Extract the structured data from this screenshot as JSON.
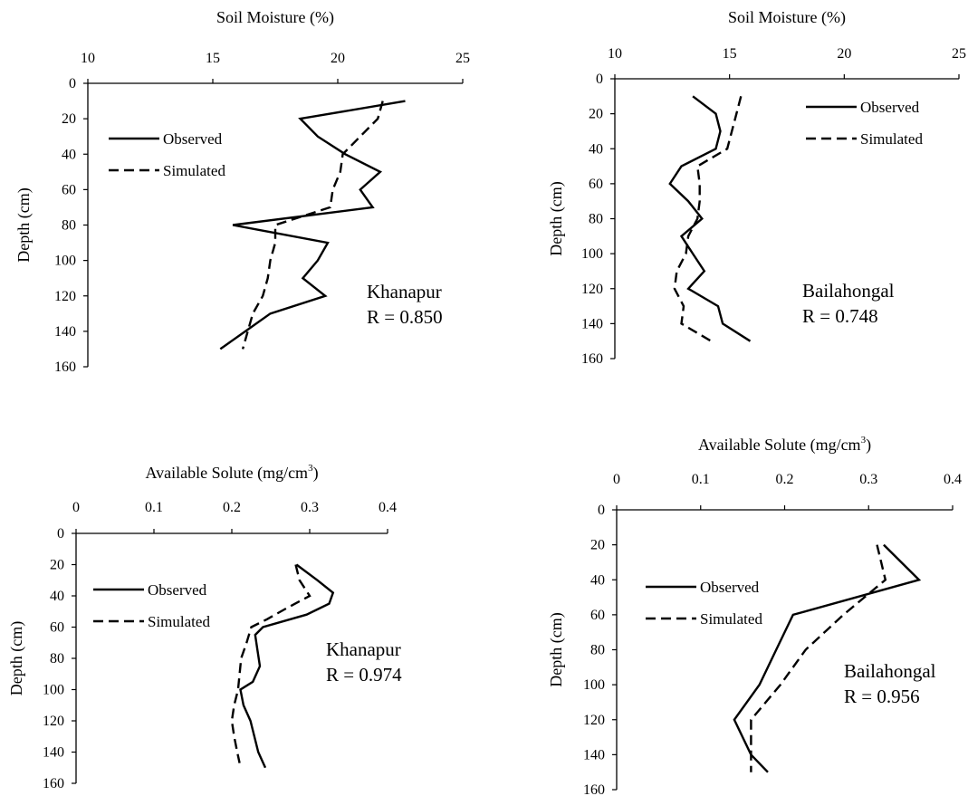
{
  "chart_data": [
    {
      "type": "line",
      "orientation": "depth-profile",
      "title": "",
      "xlabel": "Soil Moisture (%)",
      "xlabel_sup": "",
      "ylabel": "Depth (cm)",
      "xlim": [
        10,
        25
      ],
      "ylim": [
        0,
        160
      ],
      "y_inverted": true,
      "xticks": [
        10,
        15,
        20,
        25
      ],
      "xtick_labels": [
        "10",
        "15",
        "20",
        "25"
      ],
      "yticks": [
        0,
        20,
        40,
        60,
        80,
        100,
        120,
        140,
        160
      ],
      "ytick_labels": [
        "0",
        "20",
        "40",
        "60",
        "80",
        "100",
        "120",
        "140",
        "160"
      ],
      "grid": false,
      "legend_position": "top-left",
      "annotation": [
        "Khanapur",
        "R = 0.850"
      ],
      "series": [
        {
          "name": "Observed",
          "style": "solid",
          "points": [
            [
              22.7,
              10
            ],
            [
              18.5,
              20
            ],
            [
              19.2,
              30
            ],
            [
              20.3,
              40
            ],
            [
              21.7,
              50
            ],
            [
              20.9,
              60
            ],
            [
              21.4,
              70
            ],
            [
              15.8,
              80
            ],
            [
              19.6,
              90
            ],
            [
              19.2,
              100
            ],
            [
              18.6,
              110
            ],
            [
              19.5,
              120
            ],
            [
              17.3,
              130
            ],
            [
              16.3,
              140
            ],
            [
              15.3,
              150
            ]
          ]
        },
        {
          "name": "Simulated",
          "style": "dashed",
          "points": [
            [
              21.8,
              10
            ],
            [
              21.6,
              20
            ],
            [
              20.9,
              30
            ],
            [
              20.2,
              40
            ],
            [
              20.1,
              50
            ],
            [
              19.8,
              60
            ],
            [
              19.7,
              70
            ],
            [
              17.5,
              80
            ],
            [
              17.5,
              90
            ],
            [
              17.3,
              100
            ],
            [
              17.2,
              110
            ],
            [
              17.0,
              120
            ],
            [
              16.6,
              130
            ],
            [
              16.4,
              140
            ],
            [
              16.2,
              150
            ]
          ]
        }
      ]
    },
    {
      "type": "line",
      "orientation": "depth-profile",
      "title": "",
      "xlabel": "Soil Moisture (%)",
      "xlabel_sup": "",
      "ylabel": "Depth (cm)",
      "xlim": [
        10,
        25
      ],
      "ylim": [
        0,
        160
      ],
      "y_inverted": true,
      "xticks": [
        10,
        15,
        20,
        25
      ],
      "xtick_labels": [
        "10",
        "15",
        "20",
        "25"
      ],
      "yticks": [
        0,
        20,
        40,
        60,
        80,
        100,
        120,
        140,
        160
      ],
      "ytick_labels": [
        "0",
        "20",
        "40",
        "60",
        "80",
        "100",
        "120",
        "140",
        "160"
      ],
      "grid": false,
      "legend_position": "top-right",
      "annotation": [
        "Bailahongal",
        "R = 0.748"
      ],
      "series": [
        {
          "name": "Observed",
          "style": "solid",
          "points": [
            [
              13.4,
              10
            ],
            [
              14.4,
              20
            ],
            [
              14.6,
              30
            ],
            [
              14.4,
              40
            ],
            [
              12.9,
              50
            ],
            [
              12.4,
              60
            ],
            [
              13.2,
              70
            ],
            [
              13.8,
              80
            ],
            [
              12.9,
              90
            ],
            [
              13.4,
              100
            ],
            [
              13.9,
              110
            ],
            [
              13.2,
              120
            ],
            [
              14.5,
              130
            ],
            [
              14.7,
              140
            ],
            [
              15.9,
              150
            ]
          ]
        },
        {
          "name": "Simulated",
          "style": "dashed",
          "points": [
            [
              15.5,
              10
            ],
            [
              15.3,
              20
            ],
            [
              15.1,
              30
            ],
            [
              14.9,
              40
            ],
            [
              13.6,
              50
            ],
            [
              13.7,
              60
            ],
            [
              13.7,
              70
            ],
            [
              13.6,
              80
            ],
            [
              13.2,
              90
            ],
            [
              13.1,
              100
            ],
            [
              12.7,
              110
            ],
            [
              12.6,
              120
            ],
            [
              13.0,
              130
            ],
            [
              12.9,
              140
            ],
            [
              14.2,
              150
            ]
          ]
        }
      ]
    },
    {
      "type": "line",
      "orientation": "depth-profile",
      "title": "",
      "xlabel": "Available Solute (mg/cm",
      "xlabel_sup": "3",
      "xlabel_end": ")",
      "ylabel": "Depth (cm)",
      "xlim": [
        0,
        0.4
      ],
      "ylim": [
        0,
        160
      ],
      "y_inverted": true,
      "xticks": [
        0,
        0.1,
        0.2,
        0.3,
        0.4
      ],
      "xtick_labels": [
        "0",
        "0.1",
        "0.2",
        "0.3",
        "0.4"
      ],
      "yticks": [
        0,
        20,
        40,
        60,
        80,
        100,
        120,
        140,
        160
      ],
      "ytick_labels": [
        "0",
        "20",
        "40",
        "60",
        "80",
        "100",
        "120",
        "140",
        "160"
      ],
      "grid": false,
      "legend_position": "top-left",
      "annotation": [
        "Khanapur",
        "R = 0.974"
      ],
      "series": [
        {
          "name": "Observed",
          "style": "solid",
          "points": [
            [
              0.283,
              20
            ],
            [
              0.31,
              30
            ],
            [
              0.33,
              38
            ],
            [
              0.325,
              45
            ],
            [
              0.296,
              52
            ],
            [
              0.24,
              60
            ],
            [
              0.23,
              65
            ],
            [
              0.233,
              75
            ],
            [
              0.236,
              85
            ],
            [
              0.227,
              95
            ],
            [
              0.211,
              100
            ],
            [
              0.215,
              110
            ],
            [
              0.224,
              120
            ],
            [
              0.234,
              140
            ],
            [
              0.243,
              150
            ]
          ]
        },
        {
          "name": "Simulated",
          "style": "dashed",
          "points": [
            [
              0.282,
              20
            ],
            [
              0.287,
              30
            ],
            [
              0.3,
              40
            ],
            [
              0.27,
              48
            ],
            [
              0.245,
              55
            ],
            [
              0.225,
              60
            ],
            [
              0.219,
              70
            ],
            [
              0.212,
              80
            ],
            [
              0.21,
              90
            ],
            [
              0.208,
              100
            ],
            [
              0.203,
              110
            ],
            [
              0.2,
              120
            ],
            [
              0.203,
              130
            ],
            [
              0.207,
              140
            ],
            [
              0.21,
              147
            ]
          ]
        }
      ]
    },
    {
      "type": "line",
      "orientation": "depth-profile",
      "title": "",
      "xlabel": "Available Solute (mg/cm",
      "xlabel_sup": "3",
      "xlabel_end": ")",
      "ylabel": "Depth (cm)",
      "xlim": [
        0,
        0.4
      ],
      "ylim": [
        0,
        160
      ],
      "y_inverted": true,
      "xticks": [
        0,
        0.1,
        0.2,
        0.3,
        0.4
      ],
      "xtick_labels": [
        "0",
        "0.1",
        "0.2",
        "0.3",
        "0.4"
      ],
      "yticks": [
        0,
        20,
        40,
        60,
        80,
        100,
        120,
        140,
        160
      ],
      "ytick_labels": [
        "0",
        "20",
        "40",
        "60",
        "80",
        "100",
        "120",
        "140",
        "160"
      ],
      "grid": false,
      "legend_position": "left",
      "annotation": [
        "Bailahongal",
        "R = 0.956"
      ],
      "series": [
        {
          "name": "Observed",
          "style": "solid",
          "points": [
            [
              0.318,
              20
            ],
            [
              0.36,
              40
            ],
            [
              0.21,
              60
            ],
            [
              0.19,
              80
            ],
            [
              0.17,
              100
            ],
            [
              0.14,
              120
            ],
            [
              0.16,
              140
            ],
            [
              0.18,
              150
            ]
          ]
        },
        {
          "name": "Simulated",
          "style": "dashed",
          "points": [
            [
              0.31,
              20
            ],
            [
              0.32,
              40
            ],
            [
              0.27,
              60
            ],
            [
              0.225,
              80
            ],
            [
              0.195,
              100
            ],
            [
              0.16,
              120
            ],
            [
              0.16,
              140
            ],
            [
              0.16,
              150
            ]
          ]
        }
      ]
    }
  ]
}
